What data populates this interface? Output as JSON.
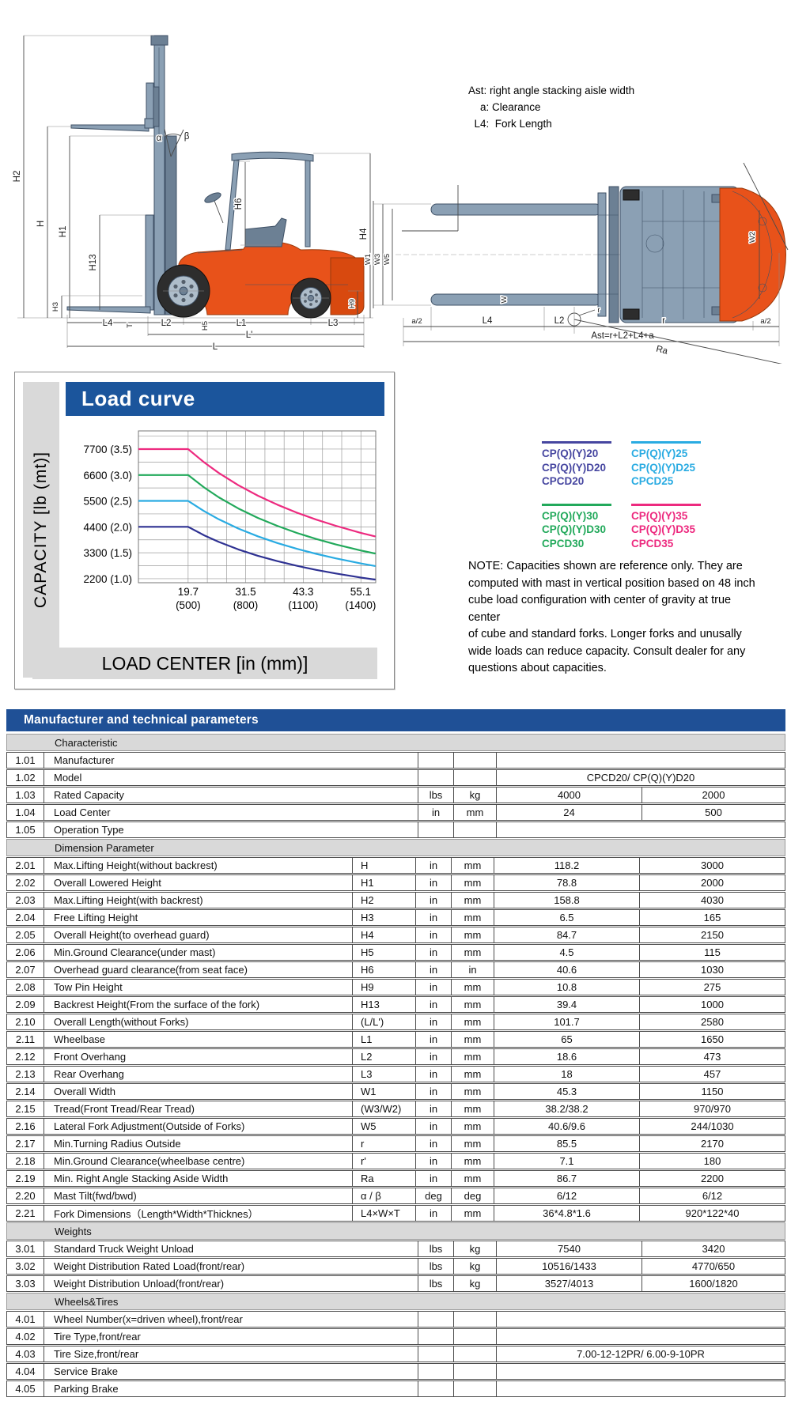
{
  "colors": {
    "header_blue": "#1f5096",
    "title_blue": "#1b559c",
    "panel_gray": "#d9d9d9",
    "truck_orange": "#e8521a",
    "truck_steel": "#8ba0b4",
    "series_20": "#2e3192",
    "series_25": "#29abe2",
    "series_30": "#22a95b",
    "series_35": "#ed2a7f",
    "legend_20_text": "#4646a0"
  },
  "diagram": {
    "ast_note": "Ast: right angle stacking aisle width\n    a: Clearance\n  L4:  Fork Length",
    "side_labels": {
      "h2": "H2",
      "h": "H",
      "h1": "H1",
      "h13": "H13",
      "h3": "H3",
      "alpha": "α",
      "beta": "β",
      "h6": "H6",
      "h4": "H4",
      "h9": "H9",
      "l4": "L4",
      "t": "T",
      "l2": "L2",
      "h5": "H5",
      "l1": "L1",
      "l3": "L3",
      "lprime": "L'",
      "l": "L"
    },
    "top_labels": {
      "w1": "W1",
      "w3": "W3",
      "w5": "W5",
      "w": "W",
      "w2": "W2",
      "a2_left": "a/2",
      "l4": "L4",
      "l2": "L2",
      "r_small": "r",
      "r": "r",
      "a2_right": "a/2",
      "ast": "Ast=r+L2+L4+a",
      "ra": "Ra"
    }
  },
  "chart": {
    "title": "Load curve",
    "y_axis_label": "CAPACITY [lb (mt)]",
    "x_axis_label": "LOAD CENTER [in (mm)]",
    "y_tick_labels": [
      "7700 (3.5)",
      "6600 (3.0)",
      "5500 (2.5)",
      "4400 (2.0)",
      "3300 (1.5)",
      "2200 (1.0)"
    ],
    "x_tick_labels_in": [
      "19.7",
      "31.5",
      "43.3",
      "55.1"
    ],
    "x_tick_labels_mm": [
      "(500)",
      "(800)",
      "(1100)",
      "(1400)"
    ]
  },
  "chart_data": {
    "type": "line",
    "title": "Load curve",
    "xlabel": "LOAD CENTER [in (mm)]",
    "ylabel": "CAPACITY [lb (mt)]",
    "x_unit": "in",
    "y_unit": "lb",
    "xlim": [
      9.5,
      58.2
    ],
    "ylim": [
      2030,
      8470
    ],
    "x_ticks": [
      19.7,
      31.5,
      43.3,
      55.1
    ],
    "x_ticks_mm": [
      500,
      800,
      1100,
      1400
    ],
    "y_ticks": [
      7700,
      6600,
      5500,
      4400,
      3300,
      2200
    ],
    "y_ticks_mt": [
      3.5,
      3.0,
      2.5,
      2.0,
      1.5,
      1.0
    ],
    "grid": true,
    "x_grid_step_in": 3.94,
    "y_grid_step_lb": 550,
    "legend_position": "outside-right",
    "series": [
      {
        "name": "CP(Q)(Y)20 / CP(Q)(Y)D20 / CPCD20",
        "color": "#2e3192",
        "x": [
          9.5,
          19.7,
          23,
          26,
          30,
          34,
          38,
          42,
          46,
          50,
          55.1,
          58
        ],
        "y": [
          4400,
          4400,
          4040,
          3760,
          3443,
          3174,
          2945,
          2747,
          2573,
          2421,
          2250,
          2164
        ]
      },
      {
        "name": "CP(Q)(Y)25 / CP(Q)(Y)D25 / CPCD25",
        "color": "#29abe2",
        "x": [
          9.5,
          19.7,
          23,
          26,
          30,
          34,
          38,
          42,
          46,
          50,
          55.1,
          58
        ],
        "y": [
          5500,
          5500,
          5062,
          4719,
          4329,
          3998,
          3714,
          3468,
          3253,
          3063,
          2850,
          2742
        ]
      },
      {
        "name": "CP(Q)(Y)30 / CP(Q)(Y)D30 / CPCD30",
        "color": "#22a95b",
        "x": [
          9.5,
          19.7,
          23,
          26,
          30,
          34,
          38,
          42,
          46,
          50,
          55.1,
          58
        ],
        "y": [
          6600,
          6600,
          6067,
          5652,
          5181,
          4782,
          4440,
          4143,
          3885,
          3655,
          3400,
          3270
        ]
      },
      {
        "name": "CP(Q)(Y)35 / CP(Q)(Y)D35 / CPCD35",
        "color": "#ed2a7f",
        "x": [
          9.5,
          19.7,
          23,
          26,
          30,
          34,
          38,
          42,
          46,
          50,
          55.1,
          58
        ],
        "y": [
          7700,
          7700,
          7133,
          6685,
          6165,
          5722,
          5340,
          5003,
          4708,
          4446,
          4148,
          3999
        ]
      }
    ]
  },
  "legend": {
    "items": [
      {
        "color": "#4646a0",
        "lines": [
          "CP(Q)(Y)20",
          "CP(Q)(Y)D20",
          "CPCD20"
        ]
      },
      {
        "color": "#29abe2",
        "lines": [
          "CP(Q)(Y)25",
          "CP(Q)(Y)D25",
          "CPCD25"
        ]
      },
      {
        "color": "#22a95b",
        "lines": [
          "CP(Q)(Y)30",
          "CP(Q)(Y)D30",
          "CPCD30"
        ]
      },
      {
        "color": "#ed2a7f",
        "lines": [
          "CP(Q)(Y)35",
          "CP(Q)(Y)D35",
          "CPCD35"
        ]
      }
    ]
  },
  "note": "NOTE: Capacities shown are reference only. They are\ncomputed with mast in vertical position based on 48 inch\ncube load configuration with center of gravity at true center\nof cube and standard forks. Longer forks and unusally\nwide loads can reduce capacity. Consult dealer for any\nquestions about capacities.",
  "table": {
    "title": "Manufacturer and technical parameters",
    "rows": [
      {
        "type": "section",
        "label": "Characteristic"
      },
      {
        "type": "row",
        "num": "1.01",
        "name": "Manufacturer",
        "wide": true,
        "u1": "",
        "u2": "",
        "vspan": ""
      },
      {
        "type": "row",
        "num": "1.02",
        "name": "Model",
        "wide": true,
        "u1": "",
        "u2": "",
        "vspan": "CPCD20/ CP(Q)(Y)D20"
      },
      {
        "type": "row",
        "num": "1.03",
        "name": "Rated Capacity",
        "wide": true,
        "u1": "lbs",
        "u2": "kg",
        "v1": "4000",
        "v2": "2000"
      },
      {
        "type": "row",
        "num": "1.04",
        "name": "Load Center",
        "wide": true,
        "u1": "in",
        "u2": "mm",
        "v1": "24",
        "v2": "500"
      },
      {
        "type": "row",
        "num": "1.05",
        "name": "Operation Type",
        "wide": true,
        "u1": "",
        "u2": "",
        "vspan": ""
      },
      {
        "type": "section",
        "label": "Dimension Parameter"
      },
      {
        "type": "row",
        "num": "2.01",
        "name": "Max.Lifting Height(without backrest)",
        "sym": "H",
        "u1": "in",
        "u2": "mm",
        "v1": "118.2",
        "v2": "3000"
      },
      {
        "type": "row",
        "num": "2.02",
        "name": "Overall Lowered Height",
        "sym": "H1",
        "u1": "in",
        "u2": "mm",
        "v1": "78.8",
        "v2": "2000"
      },
      {
        "type": "row",
        "num": "2.03",
        "name": "Max.Lifting Height(with backrest)",
        "sym": "H2",
        "u1": "in",
        "u2": "mm",
        "v1": "158.8",
        "v2": "4030"
      },
      {
        "type": "row",
        "num": "2.04",
        "name": "Free Lifting Height",
        "sym": "H3",
        "u1": "in",
        "u2": "mm",
        "v1": "6.5",
        "v2": "165"
      },
      {
        "type": "row",
        "num": "2.05",
        "name": "Overall Height(to overhead guard)",
        "sym": "H4",
        "u1": "in",
        "u2": "mm",
        "v1": "84.7",
        "v2": "2150"
      },
      {
        "type": "row",
        "num": "2.06",
        "name": "Min.Ground Clearance(under mast)",
        "sym": "H5",
        "u1": "in",
        "u2": "mm",
        "v1": "4.5",
        "v2": "115"
      },
      {
        "type": "row",
        "num": "2.07",
        "name": "Overhead guard clearance(from seat face)",
        "sym": "H6",
        "u1": "in",
        "u2": "in",
        "v1": "40.6",
        "v2": "1030"
      },
      {
        "type": "row",
        "num": "2.08",
        "name": "Tow Pin Height",
        "sym": "H9",
        "u1": "in",
        "u2": "mm",
        "v1": "10.8",
        "v2": "275"
      },
      {
        "type": "row",
        "num": "2.09",
        "name": "Backrest Height(From the surface of the fork)",
        "sym": "H13",
        "u1": "in",
        "u2": "mm",
        "v1": "39.4",
        "v2": "1000"
      },
      {
        "type": "row",
        "num": "2.10",
        "name": "Overall Length(without Forks)",
        "sym": "(L/L')",
        "u1": "in",
        "u2": "mm",
        "v1": "101.7",
        "v2": "2580"
      },
      {
        "type": "row",
        "num": "2.11",
        "name": "Wheelbase",
        "sym": "L1",
        "u1": "in",
        "u2": "mm",
        "v1": "65",
        "v2": "1650"
      },
      {
        "type": "row",
        "num": "2.12",
        "name": "Front Overhang",
        "sym": "L2",
        "u1": "in",
        "u2": "mm",
        "v1": "18.6",
        "v2": "473"
      },
      {
        "type": "row",
        "num": "2.13",
        "name": "Rear Overhang",
        "sym": "L3",
        "u1": "in",
        "u2": "mm",
        "v1": "18",
        "v2": "457"
      },
      {
        "type": "row",
        "num": "2.14",
        "name": "Overall Width",
        "sym": "W1",
        "u1": "in",
        "u2": "mm",
        "v1": "45.3",
        "v2": "1150"
      },
      {
        "type": "row",
        "num": "2.15",
        "name": "Tread(Front Tread/Rear Tread)",
        "sym": "(W3/W2)",
        "u1": "in",
        "u2": "mm",
        "v1": "38.2/38.2",
        "v2": "970/970"
      },
      {
        "type": "row",
        "num": "2.16",
        "name": "Lateral Fork Adjustment(Outside of Forks)",
        "sym": "W5",
        "u1": "in",
        "u2": "mm",
        "v1": "40.6/9.6",
        "v2": "244/1030"
      },
      {
        "type": "row",
        "num": "2.17",
        "name": "Min.Turning Radius Outside",
        "sym": "r",
        "u1": "in",
        "u2": "mm",
        "v1": "85.5",
        "v2": "2170"
      },
      {
        "type": "row",
        "num": "2.18",
        "name": "Min.Ground Clearance(wheelbase centre)",
        "sym": "r'",
        "u1": "in",
        "u2": "mm",
        "v1": "7.1",
        "v2": "180"
      },
      {
        "type": "row",
        "num": "2.19",
        "name": "Min. Right Angle Stacking Aside Width",
        "sym": "Ra",
        "u1": "in",
        "u2": "mm",
        "v1": "86.7",
        "v2": "2200"
      },
      {
        "type": "row",
        "num": "2.20",
        "name": "Mast Tilt(fwd/bwd)",
        "sym": "α / β",
        "u1": "deg",
        "u2": "deg",
        "v1": "6/12",
        "v2": "6/12"
      },
      {
        "type": "row",
        "num": "2.21",
        "name": "Fork Dimensions（Length*Width*Thicknes）",
        "sym": "L4×W×T",
        "u1": "in",
        "u2": "mm",
        "v1": "36*4.8*1.6",
        "v2": "920*122*40"
      },
      {
        "type": "section",
        "label": "Weights"
      },
      {
        "type": "row",
        "num": "3.01",
        "name": "Standard Truck Weight Unload",
        "wide": true,
        "u1": "lbs",
        "u2": "kg",
        "v1": "7540",
        "v2": "3420"
      },
      {
        "type": "row",
        "num": "3.02",
        "name": "Weight Distribution Rated Load(front/rear)",
        "wide": true,
        "u1": "lbs",
        "u2": "kg",
        "v1": "10516/1433",
        "v2": "4770/650"
      },
      {
        "type": "row",
        "num": "3.03",
        "name": "Weight Distribution Unload(front/rear)",
        "wide": true,
        "u1": "lbs",
        "u2": "kg",
        "v1": "3527/4013",
        "v2": "1600/1820"
      },
      {
        "type": "section",
        "label": "Wheels&Tires"
      },
      {
        "type": "row",
        "num": "4.01",
        "name": "Wheel Number(x=driven wheel),front/rear",
        "wide": true,
        "u1": "",
        "u2": "",
        "vspan": ""
      },
      {
        "type": "row",
        "num": "4.02",
        "name": "Tire Type,front/rear",
        "wide": true,
        "u1": "",
        "u2": "",
        "vspan": ""
      },
      {
        "type": "row",
        "num": "4.03",
        "name": "Tire Size,front/rear",
        "wide": true,
        "u1": "",
        "u2": "",
        "vspan": "7.00-12-12PR/ 6.00-9-10PR"
      },
      {
        "type": "row",
        "num": "4.04",
        "name": "Service Brake",
        "wide": true,
        "u1": "",
        "u2": "",
        "vspan": ""
      },
      {
        "type": "row",
        "num": "4.05",
        "name": "Parking Brake",
        "wide": true,
        "u1": "",
        "u2": "",
        "vspan": ""
      }
    ]
  }
}
